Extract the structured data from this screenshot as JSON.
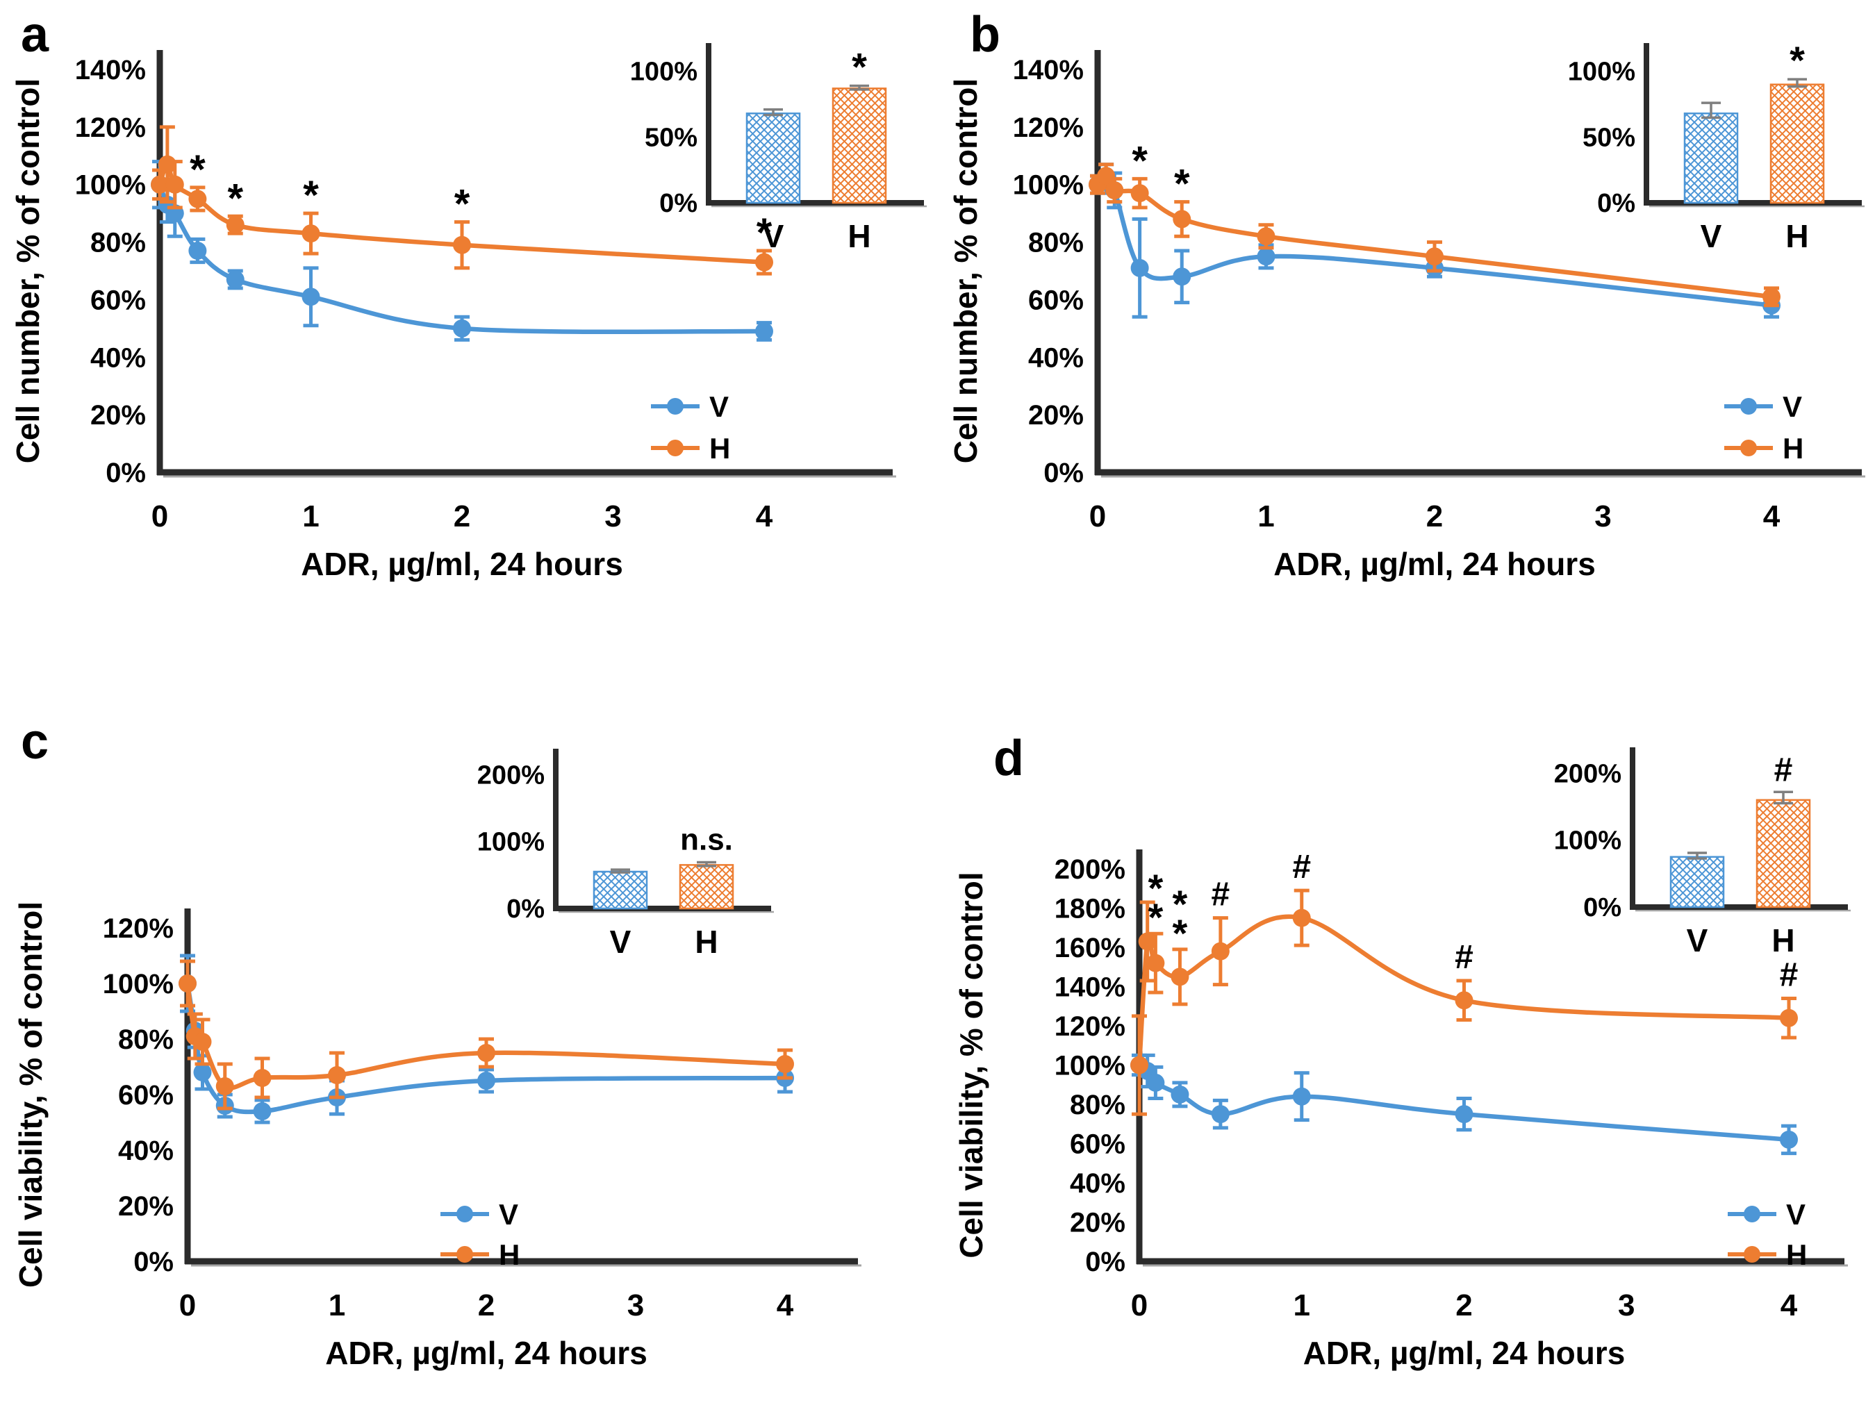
{
  "figure": {
    "background": "#ffffff"
  },
  "colors": {
    "V": "#4D96D6",
    "H": "#ED7D31",
    "axis": "#2B2B2B",
    "axis_shadow": "#A6A6A6",
    "error_gray": "#7F7F7F"
  },
  "chart_data": [
    {
      "type": "line",
      "letter": "a",
      "ylabel": "Cell number, % of control",
      "xlabel": "ADR, µg/ml, 24 hours",
      "ylim": [
        0,
        140
      ],
      "ystep": 20,
      "x_ticks": [
        0,
        1,
        2,
        3,
        4
      ],
      "x": [
        0,
        0.05,
        0.1,
        0.25,
        0.5,
        1,
        2,
        4
      ],
      "series": [
        {
          "name": "V",
          "values": [
            100,
            93,
            90,
            77,
            67,
            61,
            50,
            49
          ],
          "errors": [
            8,
            6,
            8,
            4,
            3,
            10,
            4,
            3
          ]
        },
        {
          "name": "H",
          "values": [
            100,
            107,
            100,
            95,
            86,
            83,
            79,
            73
          ],
          "errors": [
            5,
            13,
            8,
            4,
            3,
            7,
            8,
            4
          ]
        }
      ],
      "significance": [
        {
          "series": "H",
          "x_index": 3,
          "text": "*"
        },
        {
          "series": "H",
          "x_index": 4,
          "text": "*"
        },
        {
          "series": "H",
          "x_index": 5,
          "text": "*"
        },
        {
          "series": "H",
          "x_index": 6,
          "text": "*"
        },
        {
          "series": "H",
          "x_index": 7,
          "text": "*"
        }
      ],
      "legend": {
        "entries": [
          "V",
          "H"
        ],
        "position": "inside-right"
      },
      "inset": {
        "type": "bar",
        "y_ticks": [
          "0%",
          "50%",
          "100%"
        ],
        "y_tick_values": [
          0,
          50,
          100
        ],
        "ymax": 112,
        "bars": [
          {
            "label": "V",
            "value": 68,
            "error": 3
          },
          {
            "label": "H",
            "value": 87,
            "error": 2
          }
        ],
        "significance": {
          "bar": "H",
          "text": "*"
        }
      }
    },
    {
      "type": "line",
      "letter": "b",
      "ylabel": "Cell number, % of control",
      "xlabel": "ADR, µg/ml, 24 hours",
      "ylim": [
        0,
        140
      ],
      "ystep": 20,
      "x_ticks": [
        0,
        1,
        2,
        3,
        4
      ],
      "x": [
        0,
        0.05,
        0.1,
        0.25,
        0.5,
        1,
        2,
        4
      ],
      "series": [
        {
          "name": "V",
          "values": [
            100,
            102,
            98,
            71,
            68,
            75,
            71,
            58
          ],
          "errors": [
            3,
            5,
            6,
            17,
            9,
            4,
            3,
            4
          ]
        },
        {
          "name": "H",
          "values": [
            100,
            103,
            98,
            97,
            88,
            82,
            75,
            61
          ],
          "errors": [
            3,
            4,
            4,
            5,
            6,
            4,
            5,
            3
          ]
        }
      ],
      "significance": [
        {
          "series": "H",
          "x_index": 3,
          "text": "*"
        },
        {
          "series": "H",
          "x_index": 4,
          "text": "*"
        }
      ],
      "legend": {
        "entries": [
          "V",
          "H"
        ],
        "position": "inside-right"
      },
      "inset": {
        "type": "bar",
        "y_ticks": [
          "0%",
          "50%",
          "100%"
        ],
        "y_tick_values": [
          0,
          50,
          100
        ],
        "ymax": 112,
        "bars": [
          {
            "label": "V",
            "value": 68,
            "error": 8
          },
          {
            "label": "H",
            "value": 90,
            "error": 4
          }
        ],
        "significance": {
          "bar": "H",
          "text": "*"
        }
      }
    },
    {
      "type": "line",
      "letter": "c",
      "ylabel": "Cell viability, % of control",
      "xlabel": "ADR, µg/ml, 24 hours",
      "ylim": [
        0,
        120
      ],
      "ystep": 20,
      "x_ticks": [
        0,
        1,
        2,
        3,
        4
      ],
      "x": [
        0,
        0.05,
        0.1,
        0.25,
        0.5,
        1,
        2,
        4
      ],
      "series": [
        {
          "name": "V",
          "values": [
            100,
            83,
            68,
            56,
            54,
            59,
            65,
            66
          ],
          "errors": [
            10,
            6,
            6,
            4,
            4,
            6,
            4,
            5
          ]
        },
        {
          "name": "H",
          "values": [
            100,
            81,
            79,
            63,
            66,
            67,
            75,
            71
          ],
          "errors": [
            8,
            8,
            8,
            8,
            7,
            8,
            5,
            5
          ]
        }
      ],
      "significance": [],
      "legend": {
        "entries": [
          "V",
          "H"
        ],
        "position": "inside-right"
      },
      "inset": {
        "type": "bar",
        "y_ticks": [
          "0%",
          "100%",
          "200%"
        ],
        "y_tick_values": [
          0,
          100,
          200
        ],
        "ymax": 220,
        "bars": [
          {
            "label": "V",
            "value": 55,
            "error": 3
          },
          {
            "label": "H",
            "value": 65,
            "error": 4
          }
        ],
        "significance": {
          "bar": "H",
          "text": "n.s."
        }
      }
    },
    {
      "type": "line",
      "letter": "d",
      "ylabel": "Cell viability, % of control",
      "xlabel": "ADR, µg/ml, 24 hours",
      "ylim": [
        0,
        200
      ],
      "ystep": 20,
      "x_ticks": [
        0,
        1,
        2,
        3,
        4
      ],
      "x": [
        0,
        0.05,
        0.1,
        0.25,
        0.5,
        1,
        2,
        4
      ],
      "series": [
        {
          "name": "V",
          "values": [
            100,
            97,
            91,
            85,
            75,
            84,
            75,
            62
          ],
          "errors": [
            5,
            8,
            8,
            6,
            7,
            12,
            8,
            7
          ]
        },
        {
          "name": "H",
          "values": [
            100,
            163,
            152,
            145,
            158,
            175,
            133,
            124
          ],
          "errors": [
            25,
            20,
            15,
            14,
            17,
            14,
            10,
            10
          ]
        }
      ],
      "significance": [
        {
          "series": "H",
          "x_index": 2,
          "text": "**"
        },
        {
          "series": "H",
          "x_index": 3,
          "text": "**"
        },
        {
          "series": "H",
          "x_index": 4,
          "text": "#"
        },
        {
          "series": "H",
          "x_index": 5,
          "text": "#"
        },
        {
          "series": "H",
          "x_index": 6,
          "text": "#"
        },
        {
          "series": "H",
          "x_index": 7,
          "text": "#"
        }
      ],
      "legend": {
        "entries": [
          "V",
          "H"
        ],
        "position": "inside-right"
      },
      "inset": {
        "type": "bar",
        "y_ticks": [
          "0%",
          "100%",
          "200%"
        ],
        "y_tick_values": [
          0,
          100,
          200
        ],
        "ymax": 220,
        "bars": [
          {
            "label": "V",
            "value": 75,
            "error": 6
          },
          {
            "label": "H",
            "value": 160,
            "error": 12
          }
        ],
        "significance": {
          "bar": "H",
          "text": "#"
        }
      }
    }
  ]
}
